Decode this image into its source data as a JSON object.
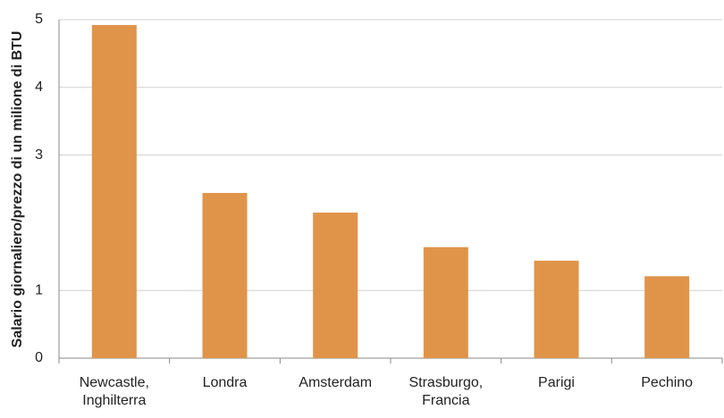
{
  "chart_data": {
    "type": "bar",
    "y_label": "Salario giornaliero/prezzo di un milione di BTU",
    "categories": [
      "Newcastle,\nInghilterra",
      "Londra",
      "Amsterdam",
      "Strasburgo,\nFrancia",
      "Parigi",
      "Pechino"
    ],
    "values": [
      4.92,
      2.44,
      2.15,
      1.64,
      1.44,
      1.21
    ],
    "color": "#e0944a",
    "ylim": [
      0,
      5
    ],
    "yticks": [
      0,
      1,
      3,
      4,
      5
    ],
    "grid": true
  }
}
